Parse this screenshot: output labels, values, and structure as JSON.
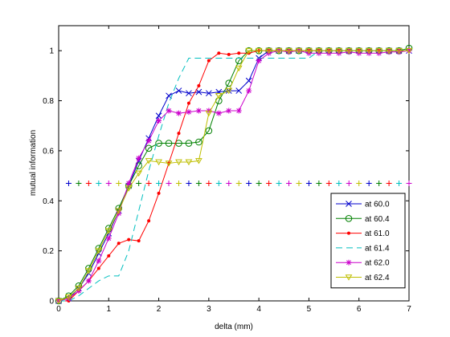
{
  "chart_data": {
    "type": "line",
    "title": "",
    "xlabel": "delta (mm)",
    "ylabel": "mutual information",
    "xlim": [
      0,
      7
    ],
    "ylim": [
      0,
      1.1
    ],
    "xticks": [
      "0",
      "1",
      "2",
      "3",
      "4",
      "5",
      "6",
      "7"
    ],
    "yticks": [
      "0",
      "0.2",
      "0.4",
      "0.6",
      "0.8",
      "1"
    ],
    "grid": false,
    "legend_position": "bottom-right",
    "x": [
      0,
      0.2,
      0.4,
      0.6,
      0.8,
      1.0,
      1.2,
      1.4,
      1.6,
      1.8,
      2.0,
      2.2,
      2.4,
      2.6,
      2.8,
      3.0,
      3.2,
      3.4,
      3.6,
      3.8,
      4.0,
      4.2,
      4.4,
      4.6,
      4.8,
      5.0,
      5.2,
      5.4,
      5.6,
      5.8,
      6.0,
      6.2,
      6.4,
      6.6,
      6.8,
      7.0
    ],
    "series": [
      {
        "name": "at 60.0",
        "color": "#0000cc",
        "linestyle": "solid",
        "marker": "x",
        "values": [
          0.0,
          0.01,
          0.05,
          0.11,
          0.19,
          0.27,
          0.36,
          0.46,
          0.56,
          0.65,
          0.74,
          0.82,
          0.84,
          0.83,
          0.835,
          0.83,
          0.835,
          0.84,
          0.84,
          0.88,
          0.97,
          1.0,
          1.0,
          1.0,
          1.0,
          1.0,
          1.0,
          1.0,
          1.0,
          1.0,
          1.0,
          1.0,
          1.0,
          1.0,
          1.0,
          1.0
        ]
      },
      {
        "name": "at 60.4",
        "color": "#008000",
        "linestyle": "solid",
        "marker": "o",
        "values": [
          0.0,
          0.02,
          0.06,
          0.13,
          0.21,
          0.29,
          0.37,
          0.46,
          0.54,
          0.61,
          0.63,
          0.63,
          0.63,
          0.63,
          0.635,
          0.68,
          0.8,
          0.87,
          0.96,
          1.0,
          1.0,
          1.0,
          1.0,
          1.0,
          1.0,
          1.0,
          1.0,
          1.0,
          1.0,
          1.0,
          1.0,
          1.0,
          1.0,
          1.0,
          1.0,
          1.01
        ]
      },
      {
        "name": "at 61.0",
        "color": "#ff0000",
        "linestyle": "solid",
        "marker": "dot",
        "values": [
          0.0,
          0.0,
          0.04,
          0.08,
          0.13,
          0.18,
          0.23,
          0.245,
          0.24,
          0.32,
          0.43,
          0.55,
          0.67,
          0.79,
          0.86,
          0.96,
          0.99,
          0.985,
          0.99,
          0.99,
          1.0,
          1.0,
          1.0,
          1.0,
          1.0,
          1.0,
          1.0,
          1.0,
          1.0,
          1.0,
          1.0,
          1.0,
          1.0,
          1.0,
          1.0,
          1.0
        ]
      },
      {
        "name": "at 61.4",
        "color": "#00bfbf",
        "linestyle": "dashed",
        "marker": "none",
        "values": [
          0.0,
          0.0,
          0.02,
          0.05,
          0.08,
          0.1,
          0.1,
          0.2,
          0.36,
          0.52,
          0.66,
          0.79,
          0.89,
          0.97,
          0.97,
          0.97,
          0.97,
          0.97,
          0.97,
          0.97,
          0.97,
          0.97,
          0.97,
          0.97,
          0.97,
          0.97,
          1.0,
          1.0,
          1.0,
          1.0,
          1.0,
          1.0,
          1.0,
          1.0,
          1.0,
          1.0
        ]
      },
      {
        "name": "at 62.0",
        "color": "#cc00cc",
        "linestyle": "solid",
        "marker": "*",
        "values": [
          0.0,
          0.01,
          0.04,
          0.08,
          0.16,
          0.25,
          0.35,
          0.47,
          0.57,
          0.64,
          0.72,
          0.76,
          0.75,
          0.755,
          0.76,
          0.76,
          0.75,
          0.76,
          0.76,
          0.84,
          0.96,
          0.99,
          1.0,
          0.995,
          1.0,
          0.99,
          0.99,
          0.99,
          0.99,
          0.995,
          0.99,
          0.99,
          0.99,
          0.995,
          0.995,
          1.0
        ]
      },
      {
        "name": "at 62.4",
        "color": "#bfbf00",
        "linestyle": "solid",
        "marker": "v",
        "values": [
          0.0,
          0.015,
          0.05,
          0.12,
          0.2,
          0.28,
          0.36,
          0.45,
          0.51,
          0.56,
          0.555,
          0.55,
          0.555,
          0.555,
          0.56,
          0.75,
          0.82,
          0.84,
          0.93,
          1.0,
          1.0,
          1.0,
          1.0,
          1.0,
          1.0,
          1.0,
          1.0,
          1.0,
          1.0,
          1.0,
          1.0,
          1.0,
          1.0,
          1.0,
          1.0,
          1.0
        ]
      }
    ],
    "reference_line": {
      "y": 0.47,
      "marker": "+",
      "x": [
        0.2,
        0.4,
        0.6,
        0.8,
        1.0,
        1.2,
        1.4,
        1.6,
        1.8,
        2.0,
        2.2,
        2.4,
        2.6,
        2.8,
        3.0,
        3.2,
        3.4,
        3.6,
        3.8,
        4.0,
        4.2,
        4.4,
        4.6,
        4.8,
        5.0,
        5.2,
        5.4,
        5.6,
        5.8,
        6.0,
        6.2,
        6.4,
        6.6,
        6.8,
        7.0
      ],
      "colors": [
        "#0000cc",
        "#008000",
        "#ff0000",
        "#00bfbf",
        "#cc00cc",
        "#bfbf00"
      ]
    }
  }
}
